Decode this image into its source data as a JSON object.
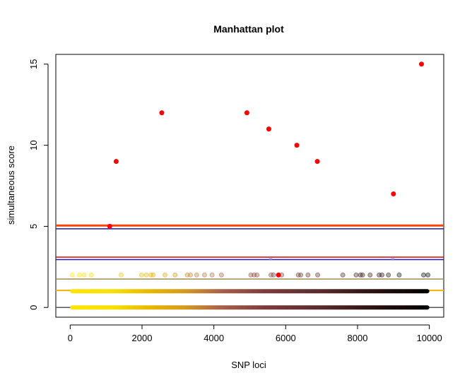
{
  "chart_data": {
    "type": "scatter",
    "title": "Manhattan plot",
    "xlabel": "SNP loci",
    "ylabel": "simultaneous score",
    "xlim": [
      -400,
      10400
    ],
    "ylim": [
      -0.6,
      15.6
    ],
    "xticks": [
      0,
      2000,
      4000,
      6000,
      8000,
      10000
    ],
    "yticks": [
      0,
      5,
      10,
      15
    ],
    "xtick_labels": [
      "0",
      "2000",
      "4000",
      "6000",
      "8000",
      "10000"
    ],
    "ytick_labels": [
      "0",
      "5",
      "10",
      "15"
    ],
    "grid": false,
    "colors": {
      "significant": "#ff0000",
      "thresh_orange": "#ff4500",
      "thresh_red": "#dd0000",
      "thresh_blue": "#1a1aaa",
      "thresh_olive": "#a08a5a",
      "thresh_gold": "#ffb000",
      "thresh_gray": "#555555"
    },
    "thresholds": [
      {
        "y": 5.05,
        "color": "#ff4500",
        "width": 3
      },
      {
        "y": 4.85,
        "color": "#1a1aaa",
        "width": 1.5
      },
      {
        "y": 3.1,
        "color": "#dd0000",
        "width": 1.5
      },
      {
        "y": 2.95,
        "color": "#1a1aaa",
        "width": 1.5
      },
      {
        "y": 1.75,
        "color": "#a08a5a",
        "width": 1.5
      },
      {
        "y": 1.05,
        "color": "#ffb000",
        "width": 2
      },
      {
        "y": 0.0,
        "color": "#555555",
        "width": 1.5
      }
    ],
    "significant_points": {
      "x": [
        1280,
        2550,
        4920,
        5530,
        6310,
        6880,
        9000,
        9780,
        5800,
        1100
      ],
      "y": [
        9,
        12,
        12,
        11,
        10,
        9,
        7,
        15,
        2,
        5
      ]
    },
    "band_rows": [
      {
        "y": 1,
        "x_start": 0,
        "x_end": 10000
      },
      {
        "y": 0,
        "x_start": 0,
        "x_end": 10000
      }
    ],
    "score2_points": {
      "x": [
        60,
        260,
        390,
        590,
        1420,
        1990,
        2120,
        2250,
        2310,
        2640,
        2920,
        3260,
        3350,
        3520,
        3740,
        3950,
        4210,
        5030,
        5120,
        5200,
        5590,
        5660,
        5890,
        6350,
        6420,
        6620,
        6890,
        7590,
        7960,
        8080,
        8140,
        8350,
        8600,
        8680,
        8860,
        9160,
        9840,
        9960
      ],
      "y": [
        2,
        2,
        2,
        2,
        2,
        2,
        2,
        2,
        2,
        2,
        2,
        2,
        2,
        2,
        2,
        2,
        2,
        2,
        2,
        2,
        2,
        2,
        2,
        2,
        2,
        2,
        2,
        2,
        2,
        2,
        2,
        2,
        2,
        2,
        2,
        2,
        2,
        2
      ]
    },
    "score3_points": {
      "x": [
        5580,
        8980
      ],
      "y": [
        3,
        3
      ]
    }
  }
}
